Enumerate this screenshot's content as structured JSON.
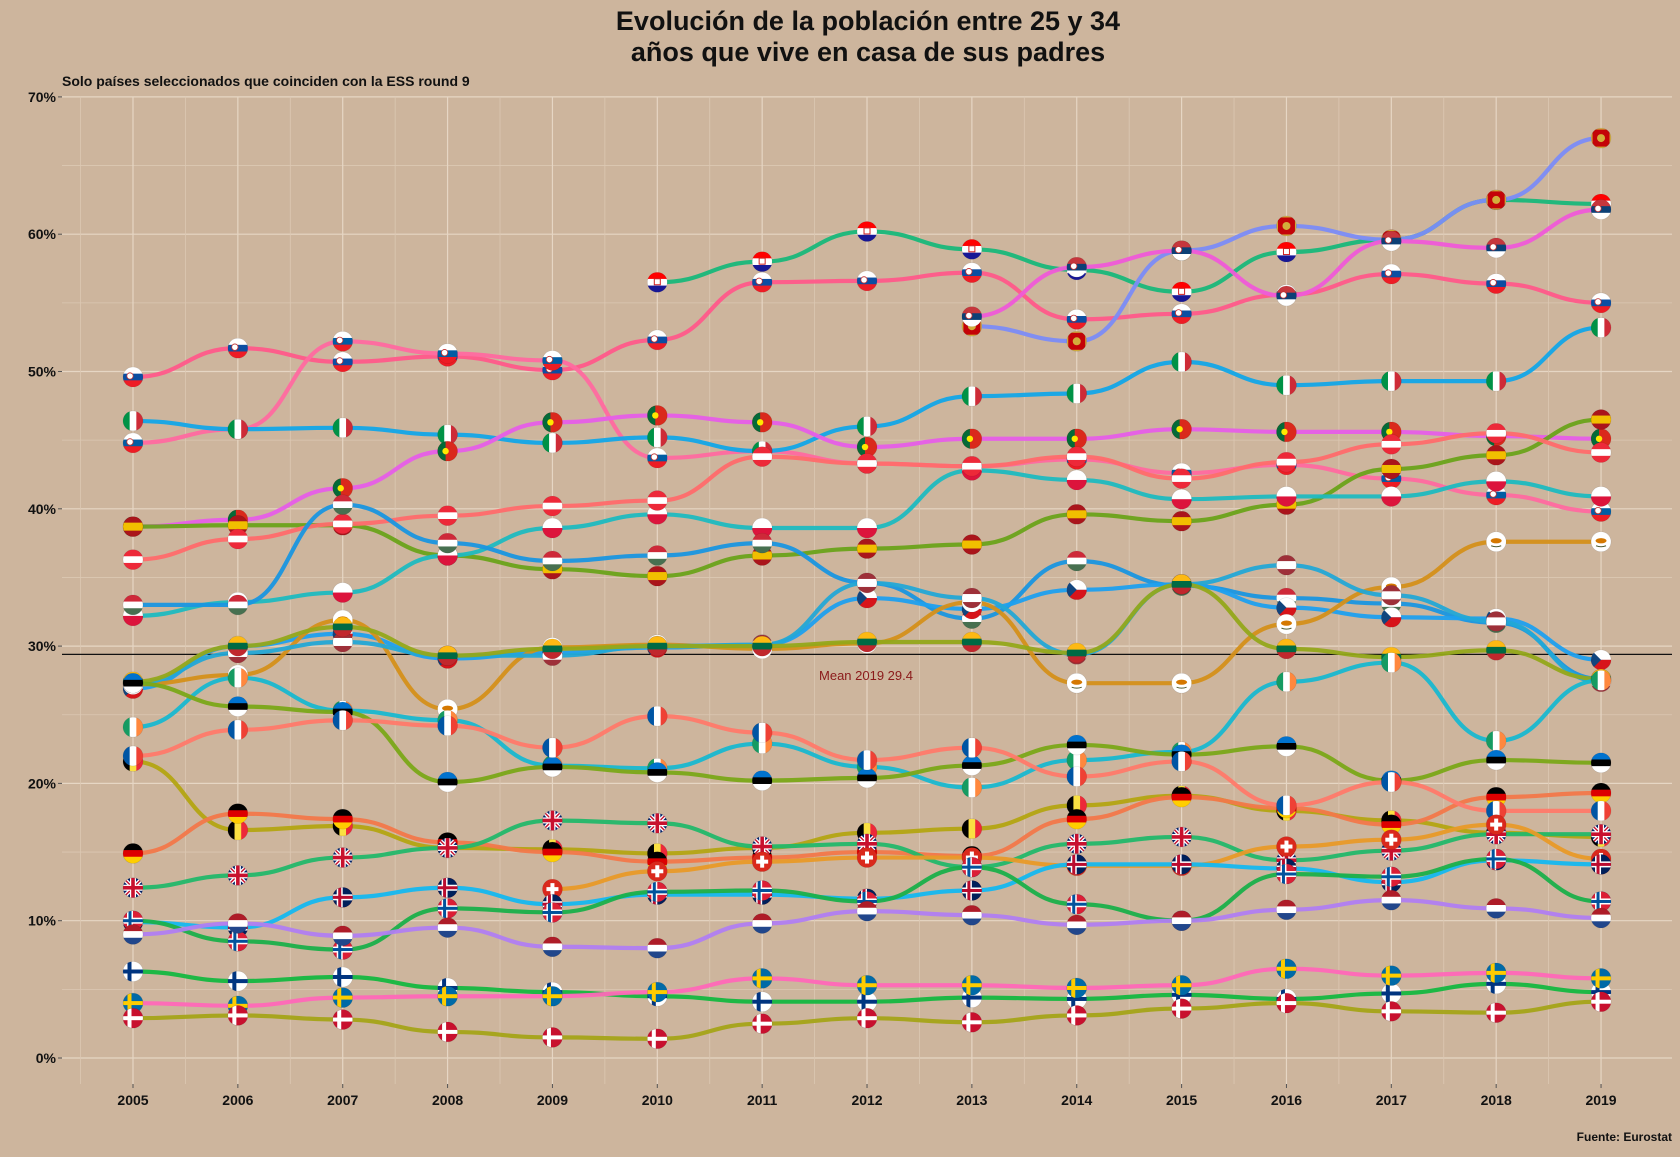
{
  "chart_data": {
    "type": "line",
    "title_line1": "Evolución de la población entre 25 y 34",
    "title_line2": "años que vive en casa de sus padres",
    "subtitle": "Solo países seleccionados que coinciden con la ESS round 9",
    "caption": "Fuente: Eurostat",
    "mean_label": "Mean 2019 29.4",
    "mean_value": 29.4,
    "x": [
      2005,
      2006,
      2007,
      2008,
      2009,
      2010,
      2011,
      2012,
      2013,
      2014,
      2015,
      2016,
      2017,
      2018,
      2019
    ],
    "x_tick_labels": [
      "2005",
      "2006",
      "2007",
      "2008",
      "2009",
      "2010",
      "2011",
      "2012",
      "2013",
      "2014",
      "2015",
      "2016",
      "2017",
      "2018",
      "2019"
    ],
    "ylim": [
      0,
      70
    ],
    "y_ticks": [
      0,
      10,
      20,
      30,
      40,
      50,
      60,
      70
    ],
    "y_tick_labels": [
      "0%",
      "10%",
      "20%",
      "30%",
      "40%",
      "50%",
      "60%",
      "70%"
    ],
    "grid": true,
    "series": [
      {
        "flag": "hr",
        "color": "#18b87a",
        "values": [
          null,
          null,
          null,
          null,
          null,
          56.5,
          58,
          60.2,
          58.9,
          57.4,
          55.8,
          58.7,
          59.6,
          62.5,
          62.2
        ]
      },
      {
        "flag": "sk",
        "color": "#ff5a8a",
        "values": [
          49.6,
          51.7,
          50.7,
          51.1,
          50.1,
          52.3,
          56.5,
          56.6,
          57.2,
          53.8,
          54.2,
          55.6,
          57.1,
          56.4,
          55
        ]
      },
      {
        "flag": "si",
        "color": "#ff6aa0",
        "values": [
          44.8,
          45.8,
          52.2,
          51.3,
          50.8,
          43.7,
          44.2,
          43.3,
          43.1,
          43.6,
          42.6,
          43.2,
          42.2,
          41,
          39.8
        ]
      },
      {
        "flag": "me",
        "color": "#7b8cf7",
        "values": [
          null,
          null,
          null,
          null,
          null,
          null,
          null,
          null,
          53.3,
          52.2,
          58.8,
          60.6,
          59.6,
          62.5,
          67
        ]
      },
      {
        "flag": "rs",
        "color": "#ef5ad8",
        "values": [
          null,
          null,
          null,
          null,
          null,
          null,
          null,
          null,
          54,
          57.6,
          58.8,
          55.5,
          59.5,
          59,
          61.8
        ]
      },
      {
        "flag": "it",
        "color": "#12a6e8",
        "values": [
          46.4,
          45.8,
          45.9,
          45.4,
          44.8,
          45.2,
          44.2,
          46,
          48.2,
          48.4,
          50.7,
          49,
          49.3,
          49.3,
          53.2
        ]
      },
      {
        "flag": "pt",
        "color": "#e65ee8",
        "values": [
          38.7,
          39.2,
          41.5,
          44.2,
          46.3,
          46.8,
          46.3,
          44.5,
          45.1,
          45.1,
          45.8,
          45.6,
          45.6,
          45.3,
          45.1
        ]
      },
      {
        "flag": "es",
        "color": "#6aa31a",
        "values": [
          38.7,
          38.8,
          38.8,
          36.6,
          35.6,
          35.1,
          36.6,
          37.1,
          37.4,
          39.6,
          39.1,
          40.3,
          42.9,
          43.9,
          46.5
        ]
      },
      {
        "flag": "pl",
        "color": "#1ebac0",
        "values": [
          32.2,
          33.2,
          33.9,
          36.6,
          38.6,
          39.6,
          38.6,
          38.6,
          42.8,
          42.1,
          40.7,
          40.9,
          40.9,
          42,
          40.9
        ]
      },
      {
        "flag": "at",
        "color": "#ff6b6b",
        "values": [
          36.3,
          37.8,
          38.9,
          39.5,
          40.2,
          40.6,
          43.8,
          43.3,
          43.1,
          43.8,
          42.2,
          43.4,
          44.7,
          45.5,
          44.1
        ]
      },
      {
        "flag": "hu",
        "color": "#1996e0",
        "values": [
          33,
          33,
          40.3,
          37.5,
          36.2,
          36.6,
          37.5,
          34.6,
          32,
          36.2,
          34.4,
          33.5,
          33.1,
          31.7,
          27.6
        ]
      },
      {
        "flag": "cz",
        "color": "#1da0ef",
        "values": [
          26.9,
          30,
          30.9,
          29.1,
          29.5,
          29.9,
          30.1,
          33.5,
          32.7,
          34.1,
          34.5,
          32.8,
          32.1,
          32,
          29
        ]
      },
      {
        "flag": "cy",
        "color": "#d4901a",
        "values": [
          27.2,
          27.9,
          31.9,
          25.4,
          29.9,
          30.1,
          29.8,
          30.2,
          33.2,
          27.3,
          27.3,
          31.6,
          34.3,
          37.6,
          37.6
        ]
      },
      {
        "flag": "lv",
        "color": "#23a8d6",
        "values": [
          27.3,
          29.5,
          30.3,
          29.3,
          29.3,
          30,
          30.1,
          34.6,
          33.5,
          29.4,
          34.5,
          35.9,
          33.7,
          31.8,
          27.4
        ]
      },
      {
        "flag": "lt",
        "color": "#93a81a",
        "values": [
          27.4,
          30,
          31.4,
          29.3,
          29.8,
          30,
          30,
          30.3,
          30.3,
          29.5,
          34.5,
          29.8,
          29.2,
          29.7,
          27.6
        ]
      },
      {
        "flag": "ie",
        "color": "#18b8d0",
        "values": [
          24.1,
          27.7,
          25.3,
          24.6,
          21.3,
          21.1,
          22.9,
          21.2,
          19.7,
          21.7,
          22.3,
          27.4,
          28.8,
          23.1,
          27.5
        ]
      },
      {
        "flag": "ee",
        "color": "#7aa818",
        "values": [
          27.3,
          25.6,
          25.2,
          20.1,
          21.2,
          20.8,
          20.2,
          20.4,
          21.3,
          22.8,
          22.1,
          22.7,
          20.2,
          21.7,
          21.5
        ]
      },
      {
        "flag": "be",
        "color": "#b3a512",
        "values": [
          21.6,
          16.6,
          16.9,
          15.3,
          15.2,
          14.9,
          15.3,
          16.4,
          16.7,
          18.4,
          19.1,
          18,
          17.3,
          16.4,
          16.1
        ]
      },
      {
        "flag": "de",
        "color": "#f2784a",
        "values": [
          14.9,
          17.8,
          17.4,
          15.7,
          15,
          14.3,
          14.6,
          15,
          14.7,
          17.4,
          19,
          18.2,
          17,
          19,
          19.3
        ]
      },
      {
        "flag": "fr",
        "color": "#ff7a6a",
        "values": [
          22,
          23.9,
          24.6,
          24.2,
          22.6,
          24.9,
          23.7,
          21.7,
          22.6,
          20.5,
          21.6,
          18.4,
          20.1,
          18,
          18
        ]
      },
      {
        "flag": "gb",
        "color": "#22b86a",
        "values": [
          12.4,
          13.3,
          14.6,
          15.3,
          17.3,
          17.1,
          15.4,
          15.6,
          13.9,
          15.6,
          16.1,
          14.4,
          15.1,
          16.3,
          16.3
        ]
      },
      {
        "flag": "ch",
        "color": "#e89a28",
        "values": [
          null,
          null,
          null,
          null,
          12.3,
          13.6,
          14.3,
          14.6,
          14.6,
          14,
          14,
          15.4,
          15.9,
          17,
          14.5
        ]
      },
      {
        "flag": "no",
        "color": "#14b8f0",
        "values": [
          9.9,
          9.5,
          11.7,
          12.4,
          11.2,
          11.9,
          11.9,
          11.6,
          12.2,
          14.1,
          14.1,
          13.8,
          12.8,
          14.4,
          14.1
        ]
      },
      {
        "flag": "is",
        "color": "#1ab04a",
        "values": [
          10,
          8.5,
          7.9,
          10.9,
          10.6,
          12.1,
          12.2,
          11.4,
          13.9,
          11.2,
          10,
          13.4,
          13.2,
          14.5,
          11.4
        ]
      },
      {
        "flag": "nl",
        "color": "#b07ef2",
        "values": [
          9,
          9.8,
          8.9,
          9.5,
          8.1,
          8,
          9.8,
          10.7,
          10.4,
          9.7,
          10,
          10.8,
          11.5,
          10.9,
          10.2
        ]
      },
      {
        "flag": "fi",
        "color": "#14b840",
        "values": [
          6.3,
          5.6,
          5.9,
          5.1,
          4.8,
          4.5,
          4.1,
          4.1,
          4.4,
          4.3,
          4.6,
          4.3,
          4.7,
          5.4,
          4.8
        ]
      },
      {
        "flag": "se",
        "color": "#ff68b8",
        "values": [
          4,
          3.8,
          4.4,
          4.5,
          4.5,
          4.8,
          5.8,
          5.3,
          5.3,
          5.1,
          5.3,
          6.5,
          6,
          6.2,
          5.8
        ]
      },
      {
        "flag": "dk",
        "color": "#a4a418",
        "values": [
          2.9,
          3.1,
          2.8,
          1.9,
          1.5,
          1.4,
          2.5,
          2.9,
          2.6,
          3.1,
          3.6,
          4,
          3.4,
          3.3,
          4.1
        ]
      }
    ]
  }
}
